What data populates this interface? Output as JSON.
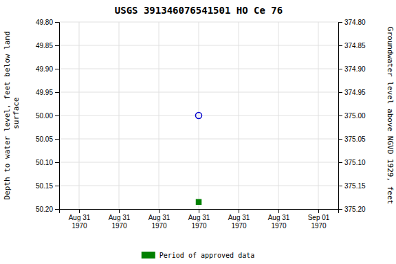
{
  "chart_data": {
    "type": "scatter",
    "title": "USGS 391346076541501 HO Ce  76",
    "y_label": "Depth to water level, feet below land\n surface",
    "y2_label": "Groundwater level above NGVD 1929, feet",
    "categories": [
      "Aug 31\n1970",
      "Aug 31\n1970",
      "Aug 31\n1970",
      "Aug 31\n1970",
      "Aug 31\n1970",
      "Aug 31\n1970",
      "Sep 01\n1970"
    ],
    "series": [
      {
        "color": "#0000cc",
        "marker": "circle-open",
        "values": [
          null,
          null,
          null,
          50.0,
          null,
          null,
          null
        ]
      },
      {
        "name": "Period of approved data",
        "color": "#008000",
        "marker": "square",
        "values": [
          null,
          null,
          null,
          50.185,
          null,
          null,
          null
        ]
      }
    ],
    "ylim": [
      50.2,
      49.8
    ],
    "yticks": [
      {
        "value": 49.8,
        "label": "49.80"
      },
      {
        "value": 49.85,
        "label": "49.85"
      },
      {
        "value": 49.9,
        "label": "49.90"
      },
      {
        "value": 49.95,
        "label": "49.95"
      },
      {
        "value": 50.0,
        "label": "50.00"
      },
      {
        "value": 50.05,
        "label": "50.05"
      },
      {
        "value": 50.1,
        "label": "50.10"
      },
      {
        "value": 50.15,
        "label": "50.15"
      },
      {
        "value": 50.2,
        "label": "50.20"
      }
    ],
    "y2lim": [
      375.2,
      374.8
    ],
    "y2ticks": [
      {
        "value": 374.8,
        "label": "374.80"
      },
      {
        "value": 374.85,
        "label": "374.85"
      },
      {
        "value": 374.9,
        "label": "374.90"
      },
      {
        "value": 374.95,
        "label": "374.95"
      },
      {
        "value": 375.0,
        "label": "375.00"
      },
      {
        "value": 375.05,
        "label": "375.05"
      },
      {
        "value": 375.1,
        "label": "375.10"
      },
      {
        "value": 375.15,
        "label": "375.15"
      },
      {
        "value": 375.2,
        "label": "375.20"
      }
    ],
    "grid": true,
    "legend": "bottom"
  }
}
